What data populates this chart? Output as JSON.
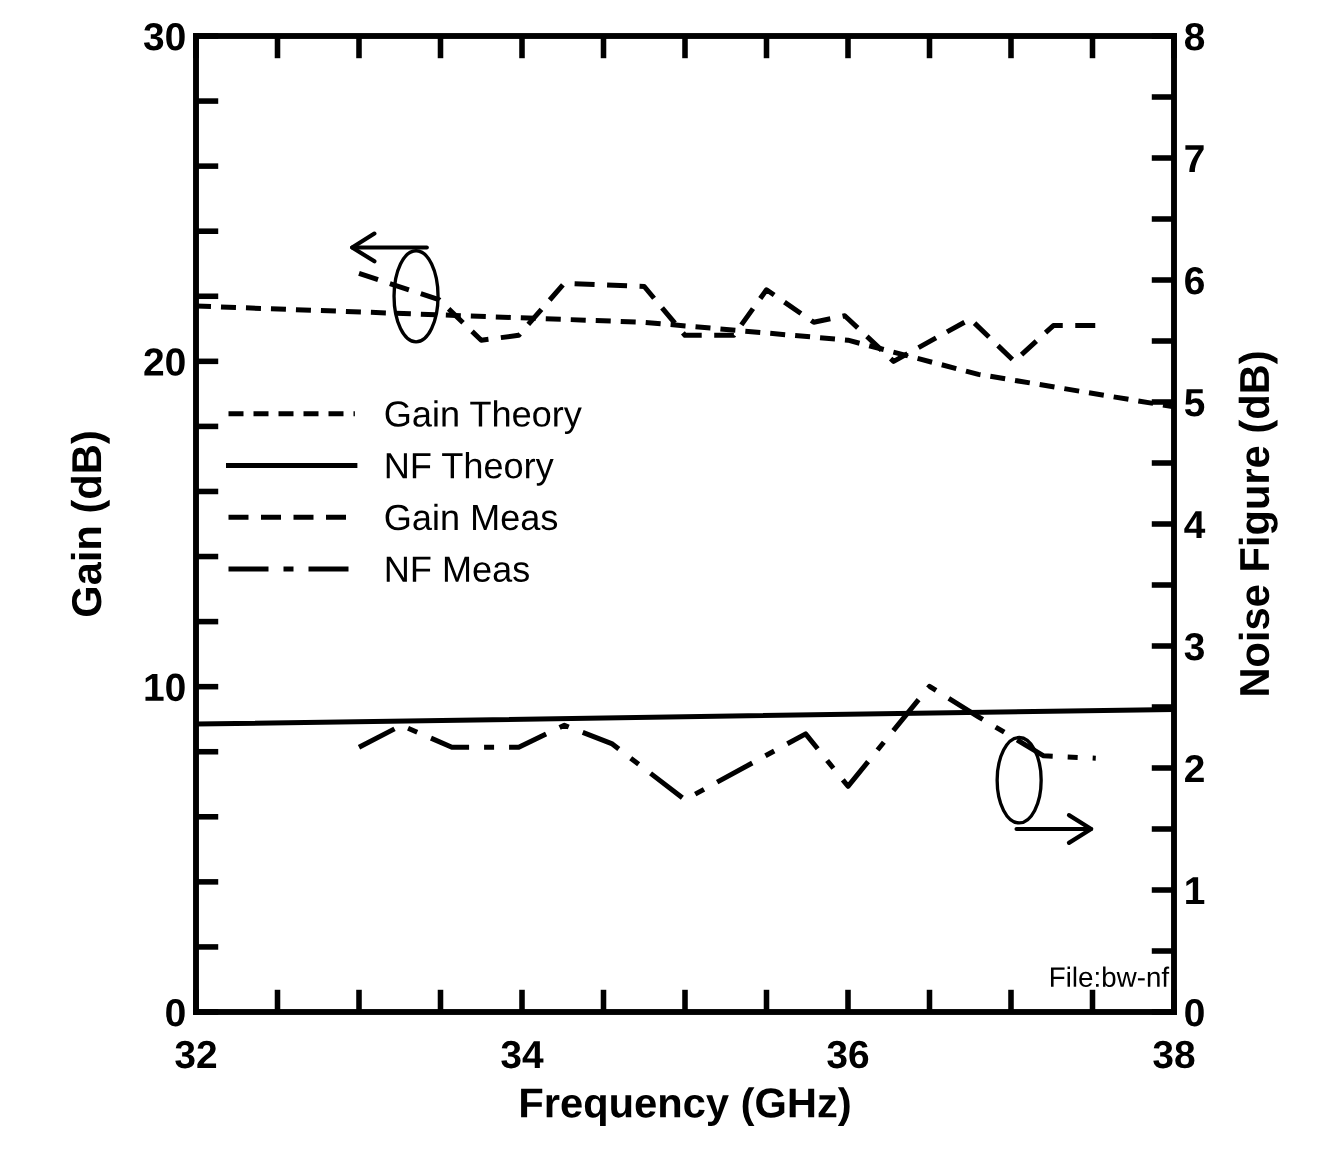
{
  "chart_data": {
    "type": "line",
    "xlabel": "Frequency (GHz)",
    "ylabel": "Gain (dB)",
    "y2label": "Noise Figure (dB)",
    "xlim": [
      32,
      38
    ],
    "ylim": [
      0,
      30
    ],
    "y2lim": [
      0,
      8
    ],
    "xticks": [
      32,
      {
        "value": 32.5,
        "label": null
      },
      {
        "value": 33,
        "label": null
      },
      {
        "value": 33.5,
        "label": null
      },
      34,
      {
        "value": 34.5,
        "label": null
      },
      {
        "value": 35,
        "label": null
      },
      {
        "value": 35.5,
        "label": null
      },
      36,
      {
        "value": 36.5,
        "label": null
      },
      {
        "value": 37,
        "label": null
      },
      {
        "value": 37.5,
        "label": null
      },
      38
    ],
    "yticks": [
      0,
      {
        "value": 2,
        "label": null
      },
      {
        "value": 4,
        "label": null
      },
      {
        "value": 6,
        "label": null
      },
      {
        "value": 8,
        "label": null
      },
      10,
      {
        "value": 12,
        "label": null
      },
      {
        "value": 14,
        "label": null
      },
      {
        "value": 16,
        "label": null
      },
      {
        "value": 18,
        "label": null
      },
      20,
      {
        "value": 22,
        "label": null
      },
      {
        "value": 24,
        "label": null
      },
      {
        "value": 26,
        "label": null
      },
      {
        "value": 28,
        "label": null
      },
      30
    ],
    "y2ticks": [
      0,
      {
        "value": 0.5,
        "label": null
      },
      1,
      {
        "value": 1.5,
        "label": null
      },
      2,
      {
        "value": 2.5,
        "label": null
      },
      3,
      {
        "value": 3.5,
        "label": null
      },
      4,
      {
        "value": 4.5,
        "label": null
      },
      5,
      {
        "value": 5.5,
        "label": null
      },
      6,
      {
        "value": 6.5,
        "label": null
      },
      7,
      {
        "value": 7.5,
        "label": null
      },
      8
    ],
    "grid": false,
    "legend": "left",
    "marker": "none",
    "series": [
      {
        "name": "Gain Theory",
        "color": "#000000",
        "line_style": "dotted",
        "x": [
          32,
          34.75,
          36,
          36.8,
          38
        ],
        "values": [
          21.7,
          21.2,
          20.65,
          19.6,
          18.6
        ]
      },
      {
        "name": "NF Theory",
        "color": "#000000",
        "line_style": "solid",
        "axis": "y2",
        "x": [
          32,
          38
        ],
        "values": [
          2.36,
          2.48
        ]
      },
      {
        "name": "Gain Meas",
        "color": "#000000",
        "line_style": "dashed",
        "x": [
          33.0,
          33.49,
          33.75,
          33.98,
          34.26,
          34.75,
          35.0,
          35.3,
          35.5,
          35.79,
          35.98,
          36.28,
          36.75,
          37.02,
          37.26,
          37.52
        ],
        "values": [
          22.7,
          21.9,
          20.65,
          20.8,
          22.4,
          22.3,
          20.8,
          20.8,
          22.2,
          21.2,
          21.4,
          20.0,
          21.3,
          20.0,
          21.1,
          21.1
        ]
      },
      {
        "name": "NF Meas",
        "color": "#000000",
        "line_style": "dashdot",
        "axis": "y2",
        "x": [
          33.0,
          33.26,
          33.57,
          33.98,
          34.26,
          34.55,
          35.0,
          35.74,
          36.0,
          36.5,
          36.8,
          37.2,
          37.52
        ],
        "values": [
          2.17,
          2.35,
          2.17,
          2.17,
          2.35,
          2.2,
          1.74,
          2.28,
          1.85,
          2.67,
          2.42,
          2.1,
          2.08
        ]
      }
    ],
    "annotations": [
      "File:bw-nf"
    ]
  }
}
